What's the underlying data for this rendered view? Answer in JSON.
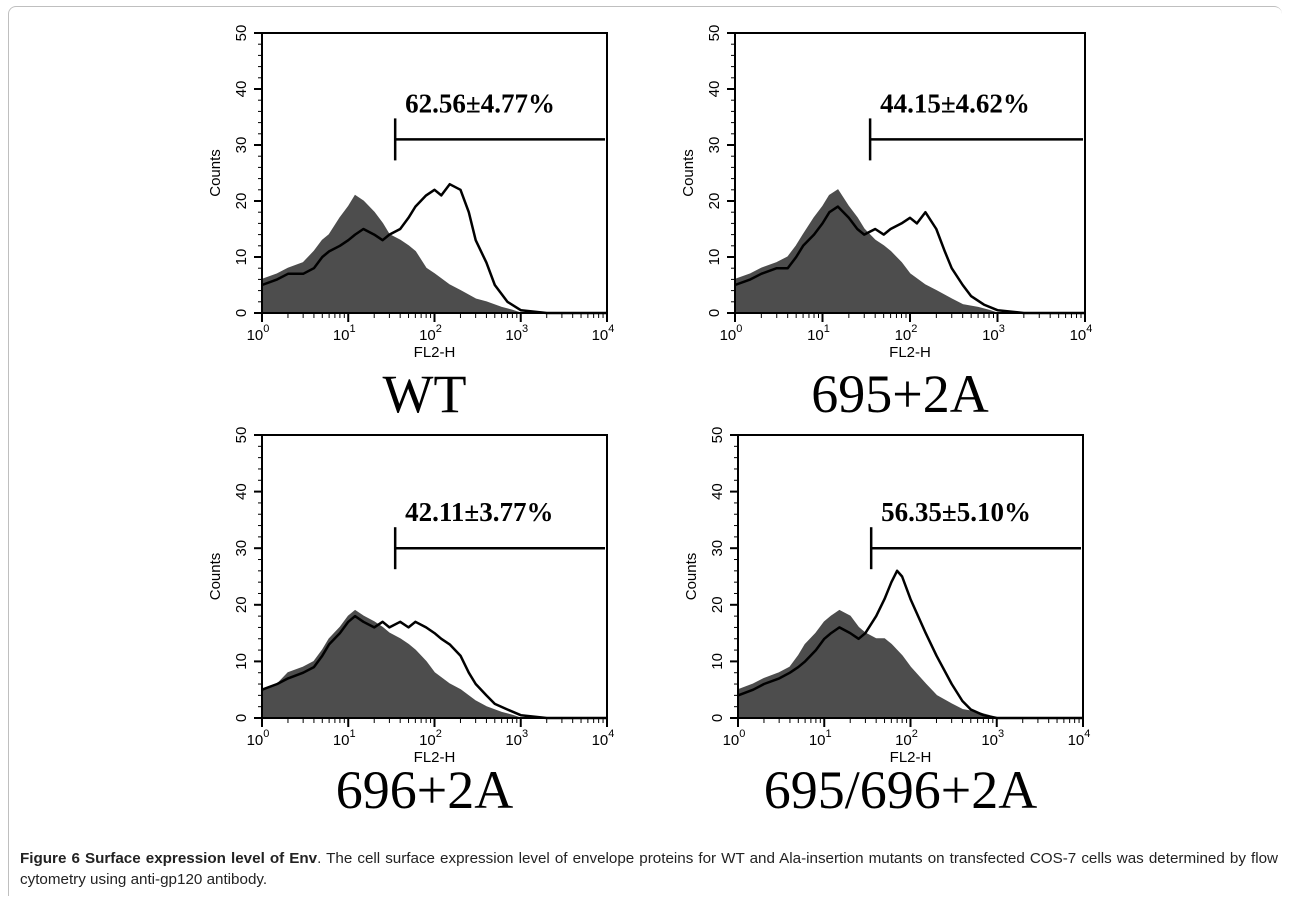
{
  "caption": {
    "label": "Figure 6",
    "title": "Surface expression level of Env",
    "text": ". The cell surface expression level of envelope proteins for WT and Ala-insertion mutants on transfected COS-7 cells was determined by flow cytometry using anti-gp120 antibody."
  },
  "colors": {
    "filled": "#4d4d4d",
    "line": "#000000"
  },
  "chart_data": [
    {
      "type": "area",
      "title": "WT",
      "xlabel": "FL2-H",
      "ylabel": "Counts",
      "x_scale": "log",
      "xlim": [
        1,
        10000
      ],
      "ylim": [
        0,
        50
      ],
      "x_ticks": [
        {
          "base": "10",
          "exp": "0"
        },
        {
          "base": "10",
          "exp": "1"
        },
        {
          "base": "10",
          "exp": "2"
        },
        {
          "base": "10",
          "exp": "3"
        },
        {
          "base": "10",
          "exp": "4"
        }
      ],
      "y_ticks": [
        "0",
        "10",
        "20",
        "30",
        "40",
        "50"
      ],
      "gate": {
        "label": "62.56±4.77%",
        "x_start": 35,
        "x_end": 10000,
        "y": 31
      },
      "series": [
        {
          "style": "filled",
          "x": [
            1,
            1.5,
            2,
            3,
            4,
            5,
            6,
            8,
            10,
            12,
            15,
            20,
            25,
            30,
            40,
            50,
            60,
            80,
            100,
            150,
            200,
            300,
            400,
            600,
            800,
            1000,
            10000
          ],
          "values": [
            6,
            7,
            8,
            9,
            11,
            13,
            14,
            17,
            19,
            21,
            20,
            18,
            16,
            14,
            13,
            12,
            11,
            8,
            7,
            5,
            4,
            2.5,
            2,
            1,
            0.5,
            0,
            0
          ]
        },
        {
          "style": "line",
          "x": [
            1,
            1.5,
            2,
            3,
            4,
            5,
            6,
            8,
            10,
            12,
            15,
            20,
            25,
            30,
            40,
            50,
            60,
            80,
            100,
            120,
            150,
            200,
            250,
            300,
            400,
            500,
            700,
            1000,
            2000,
            10000
          ],
          "values": [
            5,
            6,
            7,
            7,
            8,
            10,
            11,
            12,
            13,
            14,
            15,
            14,
            13,
            14,
            15,
            17,
            19,
            21,
            22,
            21,
            23,
            22,
            18,
            13,
            9,
            5,
            2,
            0.5,
            0,
            0
          ]
        }
      ]
    },
    {
      "type": "area",
      "title": "695+2A",
      "xlabel": "FL2-H",
      "ylabel": "Counts",
      "x_scale": "log",
      "xlim": [
        1,
        10000
      ],
      "ylim": [
        0,
        50
      ],
      "x_ticks": [
        {
          "base": "10",
          "exp": "0"
        },
        {
          "base": "10",
          "exp": "1"
        },
        {
          "base": "10",
          "exp": "2"
        },
        {
          "base": "10",
          "exp": "3"
        },
        {
          "base": "10",
          "exp": "4"
        }
      ],
      "y_ticks": [
        "0",
        "10",
        "20",
        "30",
        "40",
        "50"
      ],
      "gate": {
        "label": "44.15±4.62%",
        "x_start": 35,
        "x_end": 10000,
        "y": 31
      },
      "series": [
        {
          "style": "filled",
          "x": [
            1,
            1.5,
            2,
            3,
            4,
            5,
            6,
            8,
            10,
            12,
            15,
            20,
            25,
            30,
            40,
            50,
            60,
            80,
            100,
            150,
            200,
            300,
            400,
            600,
            800,
            1000,
            10000
          ],
          "values": [
            6,
            7,
            8,
            9,
            10,
            12,
            14,
            17,
            19,
            21,
            22,
            19,
            17,
            15,
            13,
            12,
            11,
            9,
            7,
            5,
            4,
            2.5,
            1.5,
            1,
            0.5,
            0,
            0
          ]
        },
        {
          "style": "line",
          "x": [
            1,
            1.5,
            2,
            3,
            4,
            5,
            6,
            8,
            10,
            12,
            15,
            20,
            25,
            30,
            40,
            50,
            60,
            80,
            100,
            120,
            150,
            200,
            250,
            300,
            400,
            500,
            700,
            1000,
            2000,
            10000
          ],
          "values": [
            5,
            6,
            7,
            8,
            8,
            10,
            12,
            14,
            16,
            18,
            19,
            17,
            15,
            14,
            15,
            14,
            15,
            16,
            17,
            16,
            18,
            15,
            11,
            8,
            5,
            3,
            1.5,
            0.5,
            0,
            0
          ]
        }
      ]
    },
    {
      "type": "area",
      "title": "696+2A",
      "xlabel": "FL2-H",
      "ylabel": "Counts",
      "x_scale": "log",
      "xlim": [
        1,
        10000
      ],
      "ylim": [
        0,
        50
      ],
      "x_ticks": [
        {
          "base": "10",
          "exp": "0"
        },
        {
          "base": "10",
          "exp": "1"
        },
        {
          "base": "10",
          "exp": "2"
        },
        {
          "base": "10",
          "exp": "3"
        },
        {
          "base": "10",
          "exp": "4"
        }
      ],
      "y_ticks": [
        "0",
        "10",
        "20",
        "30",
        "40",
        "50"
      ],
      "gate": {
        "label": "42.11±3.77%",
        "x_start": 35,
        "x_end": 10000,
        "y": 30
      },
      "series": [
        {
          "style": "filled",
          "x": [
            1,
            1.5,
            2,
            3,
            4,
            5,
            6,
            8,
            10,
            12,
            15,
            20,
            25,
            30,
            40,
            50,
            60,
            80,
            100,
            150,
            200,
            300,
            400,
            600,
            800,
            1000,
            10000
          ],
          "values": [
            5,
            6,
            8,
            9,
            10,
            12,
            14,
            16,
            18,
            19,
            18,
            17,
            16,
            15,
            14,
            13,
            12,
            10,
            8,
            6,
            5,
            3,
            2,
            1,
            0.5,
            0,
            0
          ]
        },
        {
          "style": "line",
          "x": [
            1,
            1.5,
            2,
            3,
            4,
            5,
            6,
            8,
            10,
            12,
            15,
            20,
            25,
            30,
            40,
            50,
            60,
            80,
            100,
            120,
            150,
            200,
            250,
            300,
            400,
            500,
            700,
            1000,
            2000,
            10000
          ],
          "values": [
            5,
            6,
            7,
            8,
            9,
            11,
            13,
            15,
            17,
            18,
            17,
            16,
            17,
            16,
            17,
            16,
            17,
            16,
            15,
            14,
            13,
            11,
            8,
            6,
            4,
            2.5,
            1.5,
            0.5,
            0,
            0
          ]
        }
      ]
    },
    {
      "type": "area",
      "title": "695/696+2A",
      "xlabel": "FL2-H",
      "ylabel": "Counts",
      "x_scale": "log",
      "xlim": [
        1,
        10000
      ],
      "ylim": [
        0,
        50
      ],
      "x_ticks": [
        {
          "base": "10",
          "exp": "0"
        },
        {
          "base": "10",
          "exp": "1"
        },
        {
          "base": "10",
          "exp": "2"
        },
        {
          "base": "10",
          "exp": "3"
        },
        {
          "base": "10",
          "exp": "4"
        }
      ],
      "y_ticks": [
        "0",
        "10",
        "20",
        "30",
        "40",
        "50"
      ],
      "gate": {
        "label": "56.35±5.10%",
        "x_start": 35,
        "x_end": 10000,
        "y": 30
      },
      "series": [
        {
          "style": "filled",
          "x": [
            1,
            1.5,
            2,
            3,
            4,
            5,
            6,
            8,
            10,
            12,
            15,
            20,
            25,
            30,
            40,
            50,
            60,
            80,
            100,
            150,
            200,
            300,
            400,
            600,
            800,
            1000,
            10000
          ],
          "values": [
            5,
            6,
            7,
            8,
            9,
            11,
            13,
            15,
            17,
            18,
            19,
            18,
            16,
            15,
            14,
            14,
            13,
            11,
            9,
            6,
            4,
            2.5,
            1.5,
            1,
            0.5,
            0,
            0
          ]
        },
        {
          "style": "line",
          "x": [
            1,
            1.5,
            2,
            3,
            4,
            5,
            6,
            8,
            10,
            12,
            15,
            20,
            25,
            30,
            40,
            50,
            60,
            70,
            80,
            100,
            150,
            200,
            300,
            400,
            500,
            700,
            1000,
            2000,
            5000,
            10000
          ],
          "values": [
            4,
            5,
            6,
            7,
            8,
            9,
            10,
            12,
            14,
            15,
            16,
            15,
            14,
            15,
            18,
            21,
            24,
            26,
            25,
            21,
            15,
            11,
            6,
            3,
            1.5,
            0.5,
            0,
            0,
            0,
            0
          ]
        }
      ]
    }
  ]
}
